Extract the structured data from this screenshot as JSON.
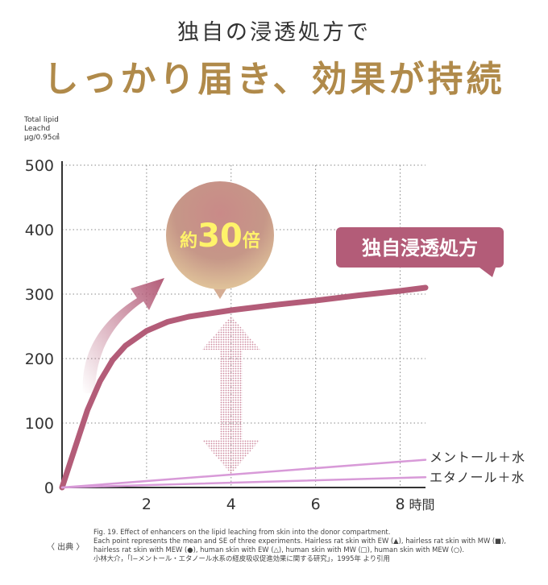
{
  "header": {
    "subtitle": "独自の浸透処方で",
    "title": "しっかり届き、効果が持続"
  },
  "chart_data": {
    "type": "line",
    "ylabel_lines": [
      "Total lipid",
      "Leachd",
      "μg/0.95㎠"
    ],
    "xlabel": "時間",
    "x_ticks": [
      2,
      4,
      6,
      8
    ],
    "y_ticks": [
      0,
      100,
      200,
      300,
      400,
      500
    ],
    "xlim": [
      0,
      8.6
    ],
    "ylim": [
      0,
      500
    ],
    "grid": true,
    "series": [
      {
        "name": "独自浸透処方",
        "color": "#b35c78",
        "x": [
          0,
          0.3,
          0.6,
          0.9,
          1.2,
          1.5,
          2,
          2.5,
          3,
          4,
          5,
          6,
          7,
          8,
          8.6
        ],
        "y": [
          0,
          60,
          120,
          165,
          198,
          220,
          243,
          257,
          265,
          275,
          283,
          290,
          298,
          305,
          310
        ]
      },
      {
        "name": "メントール＋水",
        "color": "#d89ad8",
        "x": [
          0,
          8.6
        ],
        "y": [
          0,
          43
        ]
      },
      {
        "name": "エタノール＋水",
        "color": "#d89ad8",
        "x": [
          0,
          8.6
        ],
        "y": [
          0,
          16
        ]
      }
    ],
    "annotations": {
      "bubble_prefix": "約",
      "bubble_number": "30",
      "bubble_suffix": "倍"
    }
  },
  "footer": {
    "tag": "〈 出典 〉",
    "lines": [
      "Fig. 19. Effect of enhancers on the lipid leaching from skin into the donor compartment.",
      "Each point represents the mean and SE of three experiments. Hairless rat skin with EW (▲), hairless rat skin with MW (■),",
      "hairless rat skin with MEW (●), human skin with EW (△), human skin with MW (□), human skin with MEW (○).",
      "小林大介，「l−メントール・エタノール水系の経皮吸収促進効果に関する研究」，1995年 より引用"
    ]
  }
}
